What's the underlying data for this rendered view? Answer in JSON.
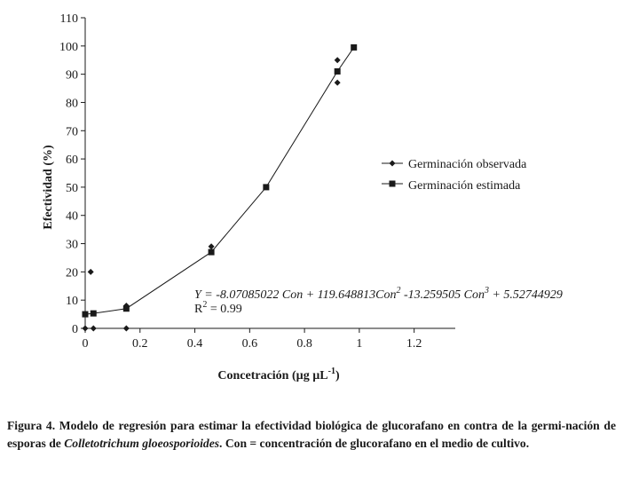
{
  "chart_data": {
    "type": "scatter",
    "title": "",
    "xlabel": "Concetración (µg µL",
    "xlabel_sup": "-1",
    "xlabel_end": ")",
    "ylabel": "Efectividad (%)",
    "xlim": [
      0,
      1.35
    ],
    "ylim": [
      0,
      110
    ],
    "x_ticks": [
      0,
      0.2,
      0.4,
      0.6,
      0.8,
      1,
      1.2
    ],
    "x_tick_labels": [
      "0",
      "0.2",
      "0.4",
      "0.6",
      "0.8",
      "1",
      "1.2"
    ],
    "y_ticks": [
      0,
      10,
      20,
      30,
      40,
      50,
      60,
      70,
      80,
      90,
      100,
      110
    ],
    "y_tick_labels": [
      "0",
      "10",
      "20",
      "30",
      "40",
      "50",
      "60",
      "70",
      "80",
      "90",
      "100",
      "110"
    ],
    "legend_position": "center-right",
    "series": [
      {
        "name": "Germinación observada",
        "marker": "diamond",
        "line": false,
        "x": [
          0,
          0.02,
          0.03,
          0.15,
          0.15,
          0.46,
          0.92,
          0.92
        ],
        "y": [
          0,
          20,
          0,
          0,
          8,
          29,
          95,
          87
        ]
      },
      {
        "name": "Germinación estimada",
        "marker": "square",
        "line": true,
        "x": [
          0,
          0.03,
          0.15,
          0.46,
          0.66,
          0.92,
          0.98
        ],
        "y": [
          5,
          5.3,
          7,
          27,
          50,
          91,
          99.5
        ]
      }
    ],
    "annotation": {
      "eq_y": "Y = -8.07085022 Con + 119.648813Con",
      "eq_y_sup1": "2",
      "eq_y_mid": " -13.259505 Con",
      "eq_y_sup2": "3",
      "eq_y_end": " + 5.52744929",
      "eq_r": "R",
      "eq_r_sup": "2",
      "eq_r_end": " = 0.99"
    }
  },
  "caption": {
    "label": "Figura 4. Modelo de regresión para estimar la efectividad biológica de glucorafano en contra de la germi-nación  de esporas de ",
    "species": "Colletotrichum gloeosporioides",
    "rest": ". Con = concentración de glucorafano en el medio de cultivo."
  },
  "colors": {
    "ink": "#1a1a1a",
    "background": "#ffffff"
  }
}
